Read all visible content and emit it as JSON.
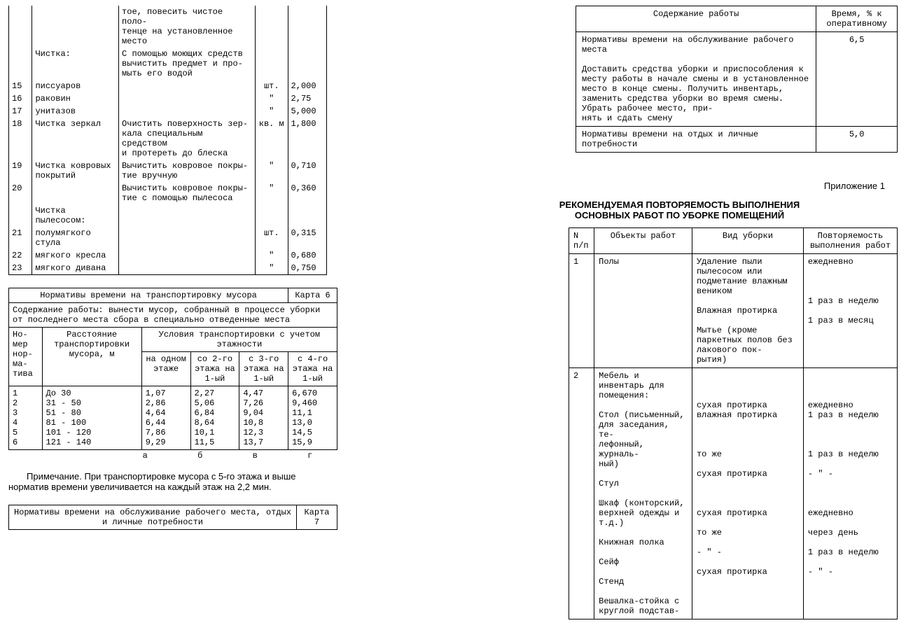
{
  "left": {
    "rows0": [
      [
        "",
        "",
        "тое, повесить чистое поло-\nтенце на установленное\nместо",
        "",
        ""
      ],
      [
        "",
        "Чистка:",
        "С помощью моющих средств\nвычистить предмет и про-\nмыть его водой",
        "",
        ""
      ],
      [
        "15",
        "писсуаров",
        "",
        "шт.",
        "2,000"
      ],
      [
        "16",
        "раковин",
        "",
        "\"",
        "2,75"
      ],
      [
        "17",
        "унитазов",
        "",
        "\"",
        "5,000"
      ],
      [
        "18",
        "Чистка зеркал",
        "Очистить поверхность зер-\nкала специальным средством\nи протереть до блеска",
        "кв. м",
        "1,800"
      ],
      [
        "19",
        "Чистка ковровых\nпокрытий",
        "Вычистить ковровое покры-\nтие вручную",
        "\"",
        "0,710"
      ],
      [
        "20",
        "",
        "Вычистить ковровое покры-\nтие с помощью пылесоса",
        "\"",
        "0,360"
      ],
      [
        "",
        "Чистка пылесосом:",
        "",
        "",
        ""
      ],
      [
        "21",
        "полумягкого стула",
        "",
        "шт.",
        "0,315"
      ],
      [
        "22",
        "мягкого кресла",
        "",
        "\"",
        "0,680"
      ],
      [
        "23",
        "мягкого дивана",
        "",
        "\"",
        "0,750"
      ]
    ],
    "card6": {
      "title": "Нормативы времени на транспортировку мусора",
      "card": "Карта 6",
      "content_label": "Содержание работы:",
      "content_text": "вынести мусор, собранный в процессе уборки от последнего места сбора в специально отведенные места",
      "h_num": "Но-\nмер\nнор-\nма-\nтива",
      "h_dist": "Расстояние\nтранспортировки\nмусора, м",
      "h_cond": "Условия транспортировки с учетом этажности",
      "subhead": [
        "на одном\nэтаже",
        "со 2-го\nэтажа на\n1-ый",
        "с 3-го\nэтажа на\n1-ый",
        "с 4-го\nэтажа на\n1-ый"
      ],
      "rows": [
        [
          "1",
          "До 30",
          "1,07",
          "2,27",
          "4,47",
          "6,670"
        ],
        [
          "2",
          "31 - 50",
          "2,86",
          "5,06",
          "7,26",
          "9,460"
        ],
        [
          "3",
          "51 - 80",
          "4,64",
          "6,84",
          "9,04",
          "11,1"
        ],
        [
          "4",
          "81 - 100",
          "6,44",
          "8,64",
          "10,8",
          "13,0"
        ],
        [
          "5",
          "101 - 120",
          "7,86",
          "10,1",
          "12,3",
          "14,5"
        ],
        [
          "6",
          "121 - 140",
          "9,29",
          "11,5",
          "13,7",
          "15,9"
        ]
      ],
      "collabels": [
        "а",
        "б",
        "в",
        "г"
      ]
    },
    "note": "Примечание. При транспортировке мусора с 5-го этажа и выше норматив времени увеличивается на каждый этаж на 2,2 мин.",
    "card7": {
      "title": "Нормативы времени на обслуживание рабочего места, отдых\nи личные потребности",
      "card": "Карта 7"
    }
  },
  "right": {
    "top": {
      "h1": "Содержание работы",
      "h2": "Время, % к\nоперативному",
      "rows": [
        [
          "Нормативы времени на обслуживание рабочего места\n\nДоставить средства уборки и приспособления к месту работы в начале смены и в установленное место в конце смены. Получить инвентарь, заменить средства уборки во время смены. Убрать рабочее место, при-\nнять и сдать смену",
          "6,5"
        ],
        [
          "Нормативы времени на отдых и личные потребности",
          "5,0"
        ]
      ]
    },
    "appendix": "Приложение 1",
    "title": "РЕКОМЕНДУЕМАЯ ПОВТОРЯЕМОСТЬ ВЫПОЛНЕНИЯ\nОСНОВНЫХ РАБОТ ПО УБОРКЕ ПОМЕЩЕНИЙ",
    "table": {
      "h_num": "N\nп/п",
      "h_obj": "Объекты работ",
      "h_vid": "Вид уборки",
      "h_rep": "Повторяемость\nвыполнения работ",
      "rows": [
        [
          "1",
          "Полы",
          "Удаление пыли пылесосом или подметание влажным веником\n\nВлажная протирка\n\nМытье (кроме паркетных полов без лакового пок-\nрытия)",
          "ежедневно\n\n\n\n1 раз в неделю\n\n1 раз в месяц"
        ],
        [
          "2",
          "Мебель и инвентарь для помещения:\n\nСтол (письменный, для заседания, те-\nлефонный, журналь-\nный)\n\nСтул\n\nШкаф (конторский, верхней одежды и т.д.)\n\nКнижная полка\n\nСейф\n\nСтенд\n\nВешалка-стойка с круглой подстав-",
          "\n\n\nсухая протирка\nвлажная протирка\n\n\n\nто же\n\nсухая протирка\n\n\n\nсухая протирка\n\nто же\n\n        - \" -\n\nсухая протирка",
          "\n\n\nежедневно\n1 раз в неделю\n\n\n\n1 раз в неделю\n\n       - \" -\n\n\n\nежедневно\n\nчерез день\n\n1 раз в неделю\n\n       - \" -"
        ]
      ]
    }
  }
}
